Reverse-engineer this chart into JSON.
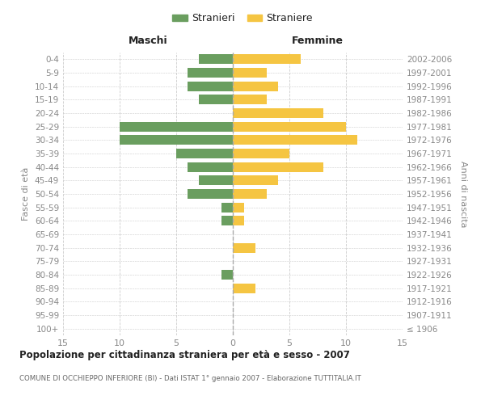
{
  "age_groups": [
    "100+",
    "95-99",
    "90-94",
    "85-89",
    "80-84",
    "75-79",
    "70-74",
    "65-69",
    "60-64",
    "55-59",
    "50-54",
    "45-49",
    "40-44",
    "35-39",
    "30-34",
    "25-29",
    "20-24",
    "15-19",
    "10-14",
    "5-9",
    "0-4"
  ],
  "birth_years": [
    "≤ 1906",
    "1907-1911",
    "1912-1916",
    "1917-1921",
    "1922-1926",
    "1927-1931",
    "1932-1936",
    "1937-1941",
    "1942-1946",
    "1947-1951",
    "1952-1956",
    "1957-1961",
    "1962-1966",
    "1967-1971",
    "1972-1976",
    "1977-1981",
    "1982-1986",
    "1987-1991",
    "1992-1996",
    "1997-2001",
    "2002-2006"
  ],
  "males": [
    0,
    0,
    0,
    0,
    1,
    0,
    0,
    0,
    1,
    1,
    4,
    3,
    4,
    5,
    10,
    10,
    0,
    3,
    4,
    4,
    3
  ],
  "females": [
    0,
    0,
    0,
    2,
    0,
    0,
    2,
    0,
    1,
    1,
    3,
    4,
    8,
    5,
    11,
    10,
    8,
    3,
    4,
    3,
    6
  ],
  "male_color": "#6a9e5f",
  "female_color": "#f5c542",
  "title": "Popolazione per cittadinanza straniera per età e sesso - 2007",
  "subtitle": "COMUNE DI OCCHIEPPO INFERIORE (BI) - Dati ISTAT 1° gennaio 2007 - Elaborazione TUTTITALIA.IT",
  "ylabel_left": "Fasce di età",
  "ylabel_right": "Anni di nascita",
  "header_left": "Maschi",
  "header_right": "Femmine",
  "legend_male": "Stranieri",
  "legend_female": "Straniere",
  "xlim": 15,
  "bg_color": "#ffffff",
  "grid_color": "#cccccc",
  "tick_color": "#888888",
  "title_color": "#222222",
  "subtitle_color": "#666666",
  "vline_color": "#aaaaaa"
}
